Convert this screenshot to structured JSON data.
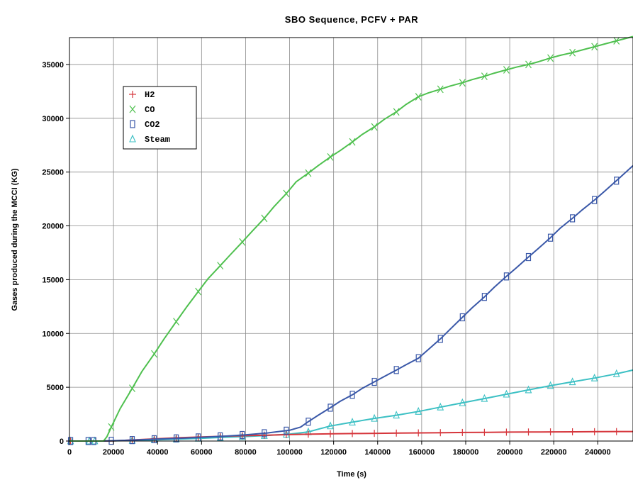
{
  "chart_data": {
    "type": "line",
    "title": "SBO Sequence, PCFV + PAR",
    "xlabel": "Time (s)",
    "ylabel": "Gases produced during the MCCI  (KG)",
    "xlim": [
      0,
      256000
    ],
    "ylim": [
      0,
      37500
    ],
    "x_ticks": [
      0,
      20000,
      40000,
      60000,
      80000,
      100000,
      120000,
      140000,
      160000,
      180000,
      200000,
      220000,
      240000
    ],
    "y_ticks": [
      0,
      5000,
      10000,
      15000,
      20000,
      25000,
      30000,
      35000
    ],
    "x_tick_labels": [
      "0",
      "20000",
      "40000",
      "60000",
      "80000",
      "100000",
      "120000",
      "140000",
      "160000",
      "180000",
      "200000",
      "220000",
      "240000"
    ],
    "y_tick_labels": [
      "0",
      "5000",
      "10000",
      "15000",
      "20000",
      "25000",
      "30000",
      "35000"
    ],
    "grid": true,
    "legend_position": "top-left",
    "series": [
      {
        "name": "H2",
        "color": "#d6363c",
        "marker": "plus",
        "points": [
          [
            0,
            0
          ],
          [
            15000,
            0
          ],
          [
            20000,
            20
          ],
          [
            30000,
            120
          ],
          [
            40000,
            220
          ],
          [
            50000,
            310
          ],
          [
            60000,
            380
          ],
          [
            70000,
            440
          ],
          [
            80000,
            500
          ],
          [
            90000,
            550
          ],
          [
            100000,
            600
          ],
          [
            110000,
            640
          ],
          [
            120000,
            670
          ],
          [
            130000,
            700
          ],
          [
            140000,
            720
          ],
          [
            150000,
            740
          ],
          [
            160000,
            760
          ],
          [
            170000,
            780
          ],
          [
            180000,
            800
          ],
          [
            190000,
            810
          ],
          [
            200000,
            830
          ],
          [
            210000,
            840
          ],
          [
            220000,
            850
          ],
          [
            230000,
            860
          ],
          [
            240000,
            870
          ],
          [
            250000,
            880
          ],
          [
            256000,
            885
          ]
        ],
        "marker_x": [
          28500,
          38500,
          48500,
          58500,
          68500,
          78500,
          88500,
          98500,
          108500,
          118500,
          128500,
          138500,
          148500,
          158500,
          168500,
          178500,
          188500,
          198500,
          208500,
          218500,
          228500,
          238500,
          248500
        ]
      },
      {
        "name": "CO",
        "color": "#4fc04f",
        "marker": "x",
        "points": [
          [
            0,
            0
          ],
          [
            15500,
            0
          ],
          [
            17000,
            400
          ],
          [
            19000,
            1300
          ],
          [
            23000,
            3000
          ],
          [
            28500,
            4900
          ],
          [
            33000,
            6500
          ],
          [
            38500,
            8100
          ],
          [
            43000,
            9500
          ],
          [
            48500,
            11100
          ],
          [
            53000,
            12400
          ],
          [
            58500,
            13900
          ],
          [
            63000,
            15100
          ],
          [
            68500,
            16300
          ],
          [
            73000,
            17300
          ],
          [
            78500,
            18500
          ],
          [
            83000,
            19500
          ],
          [
            88500,
            20700
          ],
          [
            93000,
            21800
          ],
          [
            98500,
            23000
          ],
          [
            103000,
            24100
          ],
          [
            108500,
            24900
          ],
          [
            113000,
            25600
          ],
          [
            118500,
            26400
          ],
          [
            123000,
            27000
          ],
          [
            128500,
            27800
          ],
          [
            133000,
            28500
          ],
          [
            138500,
            29200
          ],
          [
            143000,
            29900
          ],
          [
            148500,
            30600
          ],
          [
            153000,
            31300
          ],
          [
            158500,
            32000
          ],
          [
            163000,
            32350
          ],
          [
            168500,
            32700
          ],
          [
            173000,
            33000
          ],
          [
            178500,
            33300
          ],
          [
            183000,
            33600
          ],
          [
            188500,
            33900
          ],
          [
            193000,
            34200
          ],
          [
            198500,
            34500
          ],
          [
            203000,
            34750
          ],
          [
            208500,
            35000
          ],
          [
            213000,
            35250
          ],
          [
            218500,
            35600
          ],
          [
            223000,
            35850
          ],
          [
            228500,
            36100
          ],
          [
            233000,
            36350
          ],
          [
            238500,
            36650
          ],
          [
            243000,
            36900
          ],
          [
            248500,
            37200
          ],
          [
            256000,
            37600
          ]
        ],
        "marker_x": [
          19000,
          28500,
          38500,
          48500,
          58500,
          68500,
          78500,
          88500,
          98500,
          108500,
          118500,
          128500,
          138500,
          148500,
          158500,
          168500,
          178500,
          188500,
          198500,
          208500,
          218500,
          228500,
          238500,
          248500
        ]
      },
      {
        "name": "CO2",
        "color": "#3a58a8",
        "marker": "square",
        "points": [
          [
            0,
            0
          ],
          [
            15000,
            0
          ],
          [
            20000,
            30
          ],
          [
            30000,
            100
          ],
          [
            40000,
            180
          ],
          [
            50000,
            260
          ],
          [
            60000,
            350
          ],
          [
            70000,
            450
          ],
          [
            80000,
            580
          ],
          [
            90000,
            750
          ],
          [
            100000,
            1000
          ],
          [
            105000,
            1300
          ],
          [
            108500,
            1800
          ],
          [
            113000,
            2400
          ],
          [
            118500,
            3100
          ],
          [
            123000,
            3700
          ],
          [
            128500,
            4300
          ],
          [
            133000,
            4900
          ],
          [
            138500,
            5500
          ],
          [
            143000,
            6000
          ],
          [
            148500,
            6600
          ],
          [
            153000,
            7100
          ],
          [
            158500,
            7700
          ],
          [
            163000,
            8500
          ],
          [
            168500,
            9500
          ],
          [
            173000,
            10400
          ],
          [
            178500,
            11500
          ],
          [
            183000,
            12400
          ],
          [
            188500,
            13400
          ],
          [
            193000,
            14300
          ],
          [
            198500,
            15300
          ],
          [
            203000,
            16100
          ],
          [
            208500,
            17100
          ],
          [
            213000,
            17900
          ],
          [
            218500,
            18900
          ],
          [
            223000,
            19800
          ],
          [
            228500,
            20700
          ],
          [
            233000,
            21500
          ],
          [
            238500,
            22400
          ],
          [
            243000,
            23200
          ],
          [
            248500,
            24200
          ],
          [
            256000,
            25600
          ]
        ],
        "marker_x": [
          28500,
          38500,
          48500,
          58500,
          68500,
          78500,
          88500,
          98500,
          108500,
          118500,
          128500,
          138500,
          148500,
          158500,
          168500,
          178500,
          188500,
          198500,
          208500,
          218500,
          228500,
          238500,
          248500
        ]
      },
      {
        "name": "Steam",
        "color": "#3cc0c4",
        "marker": "triangle",
        "points": [
          [
            0,
            0
          ],
          [
            15000,
            0
          ],
          [
            20000,
            20
          ],
          [
            30000,
            60
          ],
          [
            40000,
            120
          ],
          [
            50000,
            180
          ],
          [
            60000,
            260
          ],
          [
            70000,
            340
          ],
          [
            80000,
            420
          ],
          [
            90000,
            520
          ],
          [
            100000,
            640
          ],
          [
            108500,
            850
          ],
          [
            113000,
            1100
          ],
          [
            118500,
            1400
          ],
          [
            128500,
            1750
          ],
          [
            138500,
            2100
          ],
          [
            148500,
            2400
          ],
          [
            158500,
            2750
          ],
          [
            168500,
            3150
          ],
          [
            178500,
            3550
          ],
          [
            188500,
            3950
          ],
          [
            198500,
            4350
          ],
          [
            208500,
            4750
          ],
          [
            218500,
            5150
          ],
          [
            228500,
            5500
          ],
          [
            238500,
            5850
          ],
          [
            248500,
            6250
          ],
          [
            256000,
            6600
          ]
        ],
        "marker_x": [
          28500,
          38500,
          48500,
          58500,
          68500,
          78500,
          88500,
          98500,
          108500,
          118500,
          128500,
          138500,
          148500,
          158500,
          168500,
          178500,
          188500,
          198500,
          208500,
          218500,
          228500,
          238500,
          248500
        ]
      }
    ],
    "early_markers": [
      {
        "series": "CO2",
        "x": [
          500,
          8500,
          11000,
          19000
        ]
      },
      {
        "series": "Steam",
        "x": [
          500,
          9000,
          11500
        ]
      },
      {
        "series": "H2",
        "x": [
          500,
          9500,
          12000
        ]
      }
    ]
  }
}
